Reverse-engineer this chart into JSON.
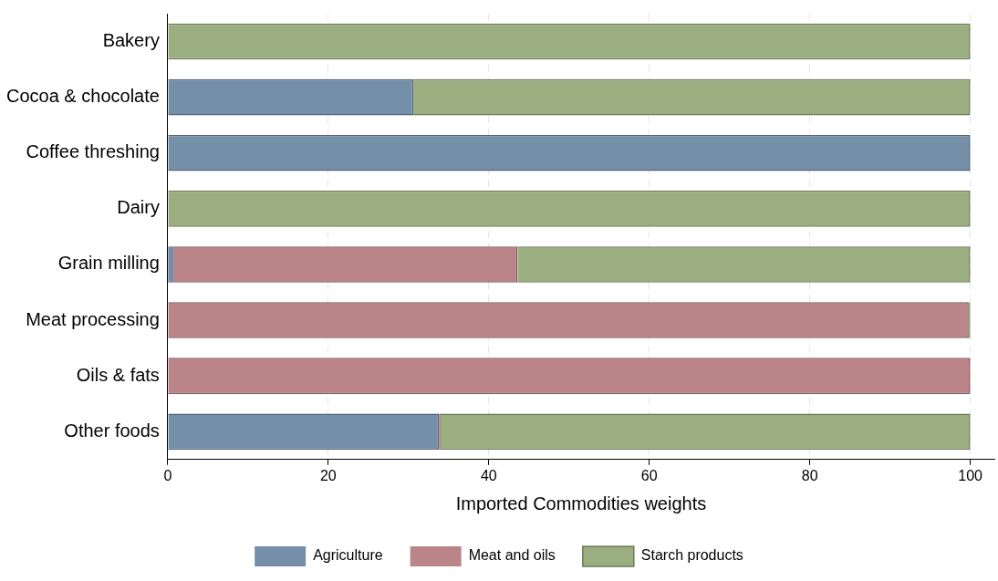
{
  "chart_data": {
    "type": "bar",
    "orientation": "horizontal",
    "stacked": true,
    "xlabel": "Imported Commodities weights",
    "categories": [
      "Bakery",
      "Cocoa & chocolate",
      "Coffee threshing",
      "Dairy",
      "Grain milling",
      "Meat processing",
      "Oils & fats",
      "Other foods"
    ],
    "series": [
      {
        "name": "Agriculture",
        "color": "#758fa9",
        "values": [
          0,
          30.6,
          100,
          0,
          0.7,
          0,
          0,
          33.8
        ]
      },
      {
        "name": "Meat and oils",
        "color": "#bb8488",
        "values": [
          0,
          0,
          0,
          0,
          42.9,
          99.8,
          100,
          0.2
        ]
      },
      {
        "name": "Starch products",
        "color": "#9aae80",
        "values": [
          100,
          69.4,
          0,
          100,
          56.4,
          0.2,
          0,
          66
        ]
      }
    ],
    "xlim": [
      0,
      103
    ],
    "xticks": [
      0,
      20,
      40,
      60,
      80,
      100
    ],
    "grid": "x",
    "legend": "bottom"
  }
}
